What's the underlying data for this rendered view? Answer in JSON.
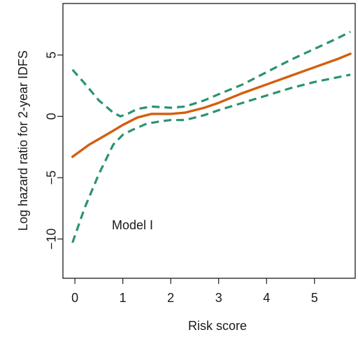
{
  "chart_data": {
    "type": "line",
    "title": "",
    "xlabel": "Risk score",
    "ylabel": "Log hazard ratio for 2-year IDFS",
    "annotation": "Model I",
    "xlim": [
      -0.25,
      5.85
    ],
    "ylim": [
      -13.2,
      9.2
    ],
    "xticks": [
      0,
      1,
      2,
      3,
      4,
      5
    ],
    "yticks": [
      -10,
      -5,
      0,
      5
    ],
    "xtick_labels": [
      "0",
      "1",
      "2",
      "3",
      "4",
      "5"
    ],
    "ytick_labels": [
      "−10",
      "−5",
      "0",
      "5"
    ],
    "grid": false,
    "legend": "none",
    "series": [
      {
        "role": "estimate",
        "color": "#d35f0e",
        "style": "solid",
        "points": [
          [
            -0.05,
            -3.3
          ],
          [
            0.3,
            -2.3
          ],
          [
            0.7,
            -1.4
          ],
          [
            1.0,
            -0.7
          ],
          [
            1.3,
            -0.1
          ],
          [
            1.6,
            0.2
          ],
          [
            2.0,
            0.2
          ],
          [
            2.3,
            0.3
          ],
          [
            2.7,
            0.7
          ],
          [
            3.0,
            1.1
          ],
          [
            3.5,
            1.9
          ],
          [
            4.0,
            2.6
          ],
          [
            4.5,
            3.3
          ],
          [
            5.0,
            4.0
          ],
          [
            5.5,
            4.7
          ],
          [
            5.75,
            5.1
          ]
        ]
      },
      {
        "role": "upper-ci",
        "color": "#2a9370",
        "style": "dashed",
        "points": [
          [
            -0.05,
            3.8
          ],
          [
            0.2,
            2.7
          ],
          [
            0.5,
            1.3
          ],
          [
            0.8,
            0.3
          ],
          [
            0.95,
            0.0
          ],
          [
            1.1,
            0.2
          ],
          [
            1.3,
            0.6
          ],
          [
            1.6,
            0.8
          ],
          [
            2.0,
            0.7
          ],
          [
            2.3,
            0.8
          ],
          [
            2.7,
            1.3
          ],
          [
            3.0,
            1.8
          ],
          [
            3.5,
            2.6
          ],
          [
            4.0,
            3.6
          ],
          [
            4.5,
            4.6
          ],
          [
            5.0,
            5.5
          ],
          [
            5.5,
            6.4
          ],
          [
            5.75,
            6.9
          ]
        ]
      },
      {
        "role": "lower-ci",
        "color": "#2a9370",
        "style": "dashed",
        "points": [
          [
            -0.05,
            -10.3
          ],
          [
            0.2,
            -7.5
          ],
          [
            0.5,
            -4.7
          ],
          [
            0.8,
            -2.3
          ],
          [
            1.0,
            -1.5
          ],
          [
            1.2,
            -1.1
          ],
          [
            1.5,
            -0.6
          ],
          [
            1.8,
            -0.4
          ],
          [
            2.0,
            -0.3
          ],
          [
            2.3,
            -0.3
          ],
          [
            2.7,
            0.1
          ],
          [
            3.0,
            0.5
          ],
          [
            3.5,
            1.1
          ],
          [
            4.0,
            1.7
          ],
          [
            4.5,
            2.3
          ],
          [
            5.0,
            2.8
          ],
          [
            5.5,
            3.2
          ],
          [
            5.75,
            3.4
          ]
        ]
      }
    ]
  }
}
